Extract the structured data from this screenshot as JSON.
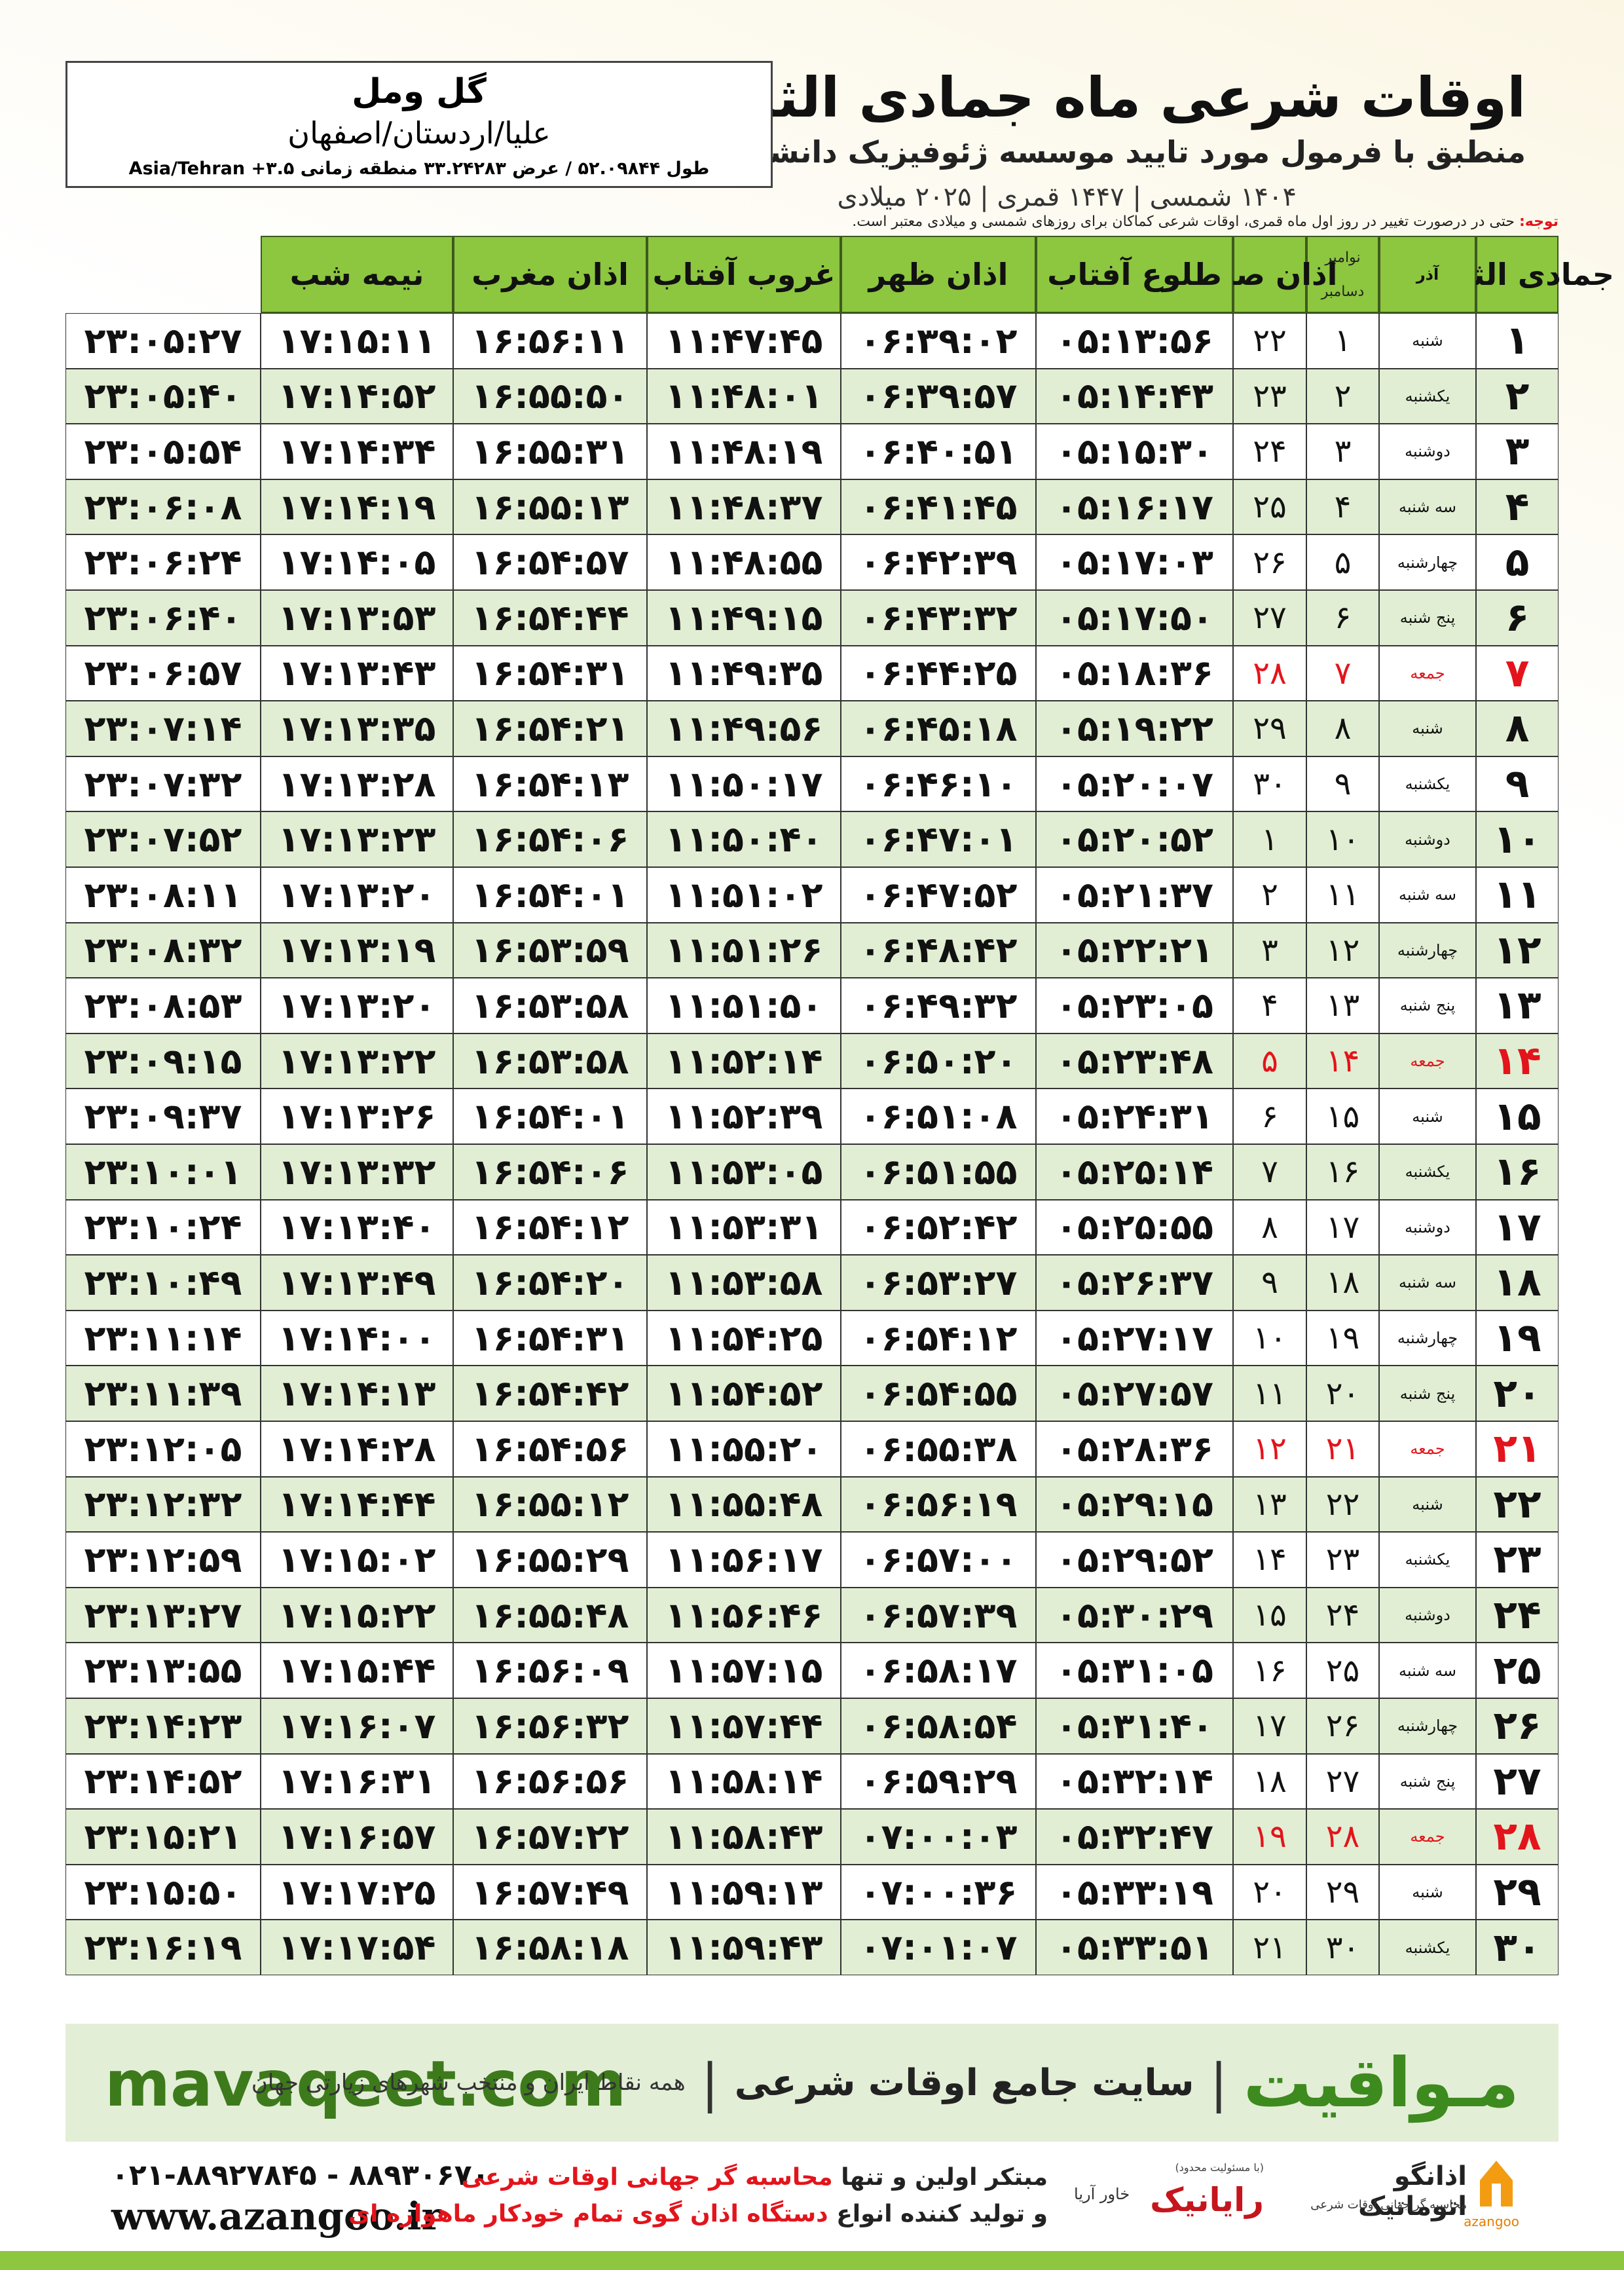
{
  "header": {
    "title": "اوقات شرعی ماه جمادی الثانی",
    "subtitle": "منطبق با فرمول مورد تایید موسسه ژئوفیزیک دانشگاه تهران",
    "dates": "۱۴۰۴ شمسی | ۱۴۴۷ قمری | ۲۰۲۵ میلادی",
    "location": {
      "name": "گل ومل",
      "region": "علیا/اردستان/اصفهان",
      "coords": "طول ۵۲.۰۹۸۴۴ / عرض ۳۳.۲۴۲۸۳ منطقه زمانی ۳.۵+ Asia/Tehran"
    },
    "note": {
      "label": "توجه:",
      "text": "حتی در درصورت تغییر در روز اول ماه قمری، اوقات شرعی کماکان برای روزهای شمسی و میلادی معتبر است."
    }
  },
  "table": {
    "columns": [
      "جمادی الثانی",
      "آذر",
      [
        "نوامبر",
        "دسامبر"
      ],
      "اذان صبح",
      "طلوع آفتاب",
      "اذان ظهر",
      "غروب آفتاب",
      "اذان مغرب",
      "نیمه شب"
    ],
    "rows": [
      {
        "cells": [
          "۱",
          "شنبه",
          "۱",
          "۲۲",
          "۰۵:۱۳:۵۶",
          "۰۶:۳۹:۰۲",
          "۱۱:۴۷:۴۵",
          "۱۶:۵۶:۱۱",
          "۱۷:۱۵:۱۱",
          "۲۳:۰۵:۲۷"
        ]
      },
      {
        "cells": [
          "۲",
          "یکشنبه",
          "۲",
          "۲۳",
          "۰۵:۱۴:۴۳",
          "۰۶:۳۹:۵۷",
          "۱۱:۴۸:۰۱",
          "۱۶:۵۵:۵۰",
          "۱۷:۱۴:۵۲",
          "۲۳:۰۵:۴۰"
        ]
      },
      {
        "cells": [
          "۳",
          "دوشنبه",
          "۳",
          "۲۴",
          "۰۵:۱۵:۳۰",
          "۰۶:۴۰:۵۱",
          "۱۱:۴۸:۱۹",
          "۱۶:۵۵:۳۱",
          "۱۷:۱۴:۳۴",
          "۲۳:۰۵:۵۴"
        ]
      },
      {
        "cells": [
          "۴",
          "سه شنبه",
          "۴",
          "۲۵",
          "۰۵:۱۶:۱۷",
          "۰۶:۴۱:۴۵",
          "۱۱:۴۸:۳۷",
          "۱۶:۵۵:۱۳",
          "۱۷:۱۴:۱۹",
          "۲۳:۰۶:۰۸"
        ]
      },
      {
        "cells": [
          "۵",
          "چهارشنبه",
          "۵",
          "۲۶",
          "۰۵:۱۷:۰۳",
          "۰۶:۴۲:۳۹",
          "۱۱:۴۸:۵۵",
          "۱۶:۵۴:۵۷",
          "۱۷:۱۴:۰۵",
          "۲۳:۰۶:۲۴"
        ]
      },
      {
        "cells": [
          "۶",
          "پنج شنبه",
          "۶",
          "۲۷",
          "۰۵:۱۷:۵۰",
          "۰۶:۴۳:۳۲",
          "۱۱:۴۹:۱۵",
          "۱۶:۵۴:۴۴",
          "۱۷:۱۳:۵۳",
          "۲۳:۰۶:۴۰"
        ]
      },
      {
        "cells": [
          "۷",
          "جمعه",
          "۷",
          "۲۸",
          "۰۵:۱۸:۳۶",
          "۰۶:۴۴:۲۵",
          "۱۱:۴۹:۳۵",
          "۱۶:۵۴:۳۱",
          "۱۷:۱۳:۴۳",
          "۲۳:۰۶:۵۷"
        ],
        "color": "#e3141b"
      },
      {
        "cells": [
          "۸",
          "شنبه",
          "۸",
          "۲۹",
          "۰۵:۱۹:۲۲",
          "۰۶:۴۵:۱۸",
          "۱۱:۴۹:۵۶",
          "۱۶:۵۴:۲۱",
          "۱۷:۱۳:۳۵",
          "۲۳:۰۷:۱۴"
        ]
      },
      {
        "cells": [
          "۹",
          "یکشنبه",
          "۹",
          "۳۰",
          "۰۵:۲۰:۰۷",
          "۰۶:۴۶:۱۰",
          "۱۱:۵۰:۱۷",
          "۱۶:۵۴:۱۳",
          "۱۷:۱۳:۲۸",
          "۲۳:۰۷:۳۲"
        ]
      },
      {
        "cells": [
          "۱۰",
          "دوشنبه",
          "۱۰",
          "۱",
          "۰۵:۲۰:۵۲",
          "۰۶:۴۷:۰۱",
          "۱۱:۵۰:۴۰",
          "۱۶:۵۴:۰۶",
          "۱۷:۱۳:۲۳",
          "۲۳:۰۷:۵۲"
        ]
      },
      {
        "cells": [
          "۱۱",
          "سه شنبه",
          "۱۱",
          "۲",
          "۰۵:۲۱:۳۷",
          "۰۶:۴۷:۵۲",
          "۱۱:۵۱:۰۲",
          "۱۶:۵۴:۰۱",
          "۱۷:۱۳:۲۰",
          "۲۳:۰۸:۱۱"
        ]
      },
      {
        "cells": [
          "۱۲",
          "چهارشنبه",
          "۱۲",
          "۳",
          "۰۵:۲۲:۲۱",
          "۰۶:۴۸:۴۲",
          "۱۱:۵۱:۲۶",
          "۱۶:۵۳:۵۹",
          "۱۷:۱۳:۱۹",
          "۲۳:۰۸:۳۲"
        ]
      },
      {
        "cells": [
          "۱۳",
          "پنج شنبه",
          "۱۳",
          "۴",
          "۰۵:۲۳:۰۵",
          "۰۶:۴۹:۳۲",
          "۱۱:۵۱:۵۰",
          "۱۶:۵۳:۵۸",
          "۱۷:۱۳:۲۰",
          "۲۳:۰۸:۵۳"
        ]
      },
      {
        "cells": [
          "۱۴",
          "جمعه",
          "۱۴",
          "۵",
          "۰۵:۲۳:۴۸",
          "۰۶:۵۰:۲۰",
          "۱۱:۵۲:۱۴",
          "۱۶:۵۳:۵۸",
          "۱۷:۱۳:۲۲",
          "۲۳:۰۹:۱۵"
        ],
        "color": "#e3141b"
      },
      {
        "cells": [
          "۱۵",
          "شنبه",
          "۱۵",
          "۶",
          "۰۵:۲۴:۳۱",
          "۰۶:۵۱:۰۸",
          "۱۱:۵۲:۳۹",
          "۱۶:۵۴:۰۱",
          "۱۷:۱۳:۲۶",
          "۲۳:۰۹:۳۷"
        ]
      },
      {
        "cells": [
          "۱۶",
          "یکشنبه",
          "۱۶",
          "۷",
          "۰۵:۲۵:۱۴",
          "۰۶:۵۱:۵۵",
          "۱۱:۵۳:۰۵",
          "۱۶:۵۴:۰۶",
          "۱۷:۱۳:۳۲",
          "۲۳:۱۰:۰۱"
        ]
      },
      {
        "cells": [
          "۱۷",
          "دوشنبه",
          "۱۷",
          "۸",
          "۰۵:۲۵:۵۵",
          "۰۶:۵۲:۴۲",
          "۱۱:۵۳:۳۱",
          "۱۶:۵۴:۱۲",
          "۱۷:۱۳:۴۰",
          "۲۳:۱۰:۲۴"
        ]
      },
      {
        "cells": [
          "۱۸",
          "سه شنبه",
          "۱۸",
          "۹",
          "۰۵:۲۶:۳۷",
          "۰۶:۵۳:۲۷",
          "۱۱:۵۳:۵۸",
          "۱۶:۵۴:۲۰",
          "۱۷:۱۳:۴۹",
          "۲۳:۱۰:۴۹"
        ]
      },
      {
        "cells": [
          "۱۹",
          "چهارشنبه",
          "۱۹",
          "۱۰",
          "۰۵:۲۷:۱۷",
          "۰۶:۵۴:۱۲",
          "۱۱:۵۴:۲۵",
          "۱۶:۵۴:۳۱",
          "۱۷:۱۴:۰۰",
          "۲۳:۱۱:۱۴"
        ]
      },
      {
        "cells": [
          "۲۰",
          "پنج شنبه",
          "۲۰",
          "۱۱",
          "۰۵:۲۷:۵۷",
          "۰۶:۵۴:۵۵",
          "۱۱:۵۴:۵۲",
          "۱۶:۵۴:۴۲",
          "۱۷:۱۴:۱۳",
          "۲۳:۱۱:۳۹"
        ]
      },
      {
        "cells": [
          "۲۱",
          "جمعه",
          "۲۱",
          "۱۲",
          "۰۵:۲۸:۳۶",
          "۰۶:۵۵:۳۸",
          "۱۱:۵۵:۲۰",
          "۱۶:۵۴:۵۶",
          "۱۷:۱۴:۲۸",
          "۲۳:۱۲:۰۵"
        ],
        "color": "#e3141b"
      },
      {
        "cells": [
          "۲۲",
          "شنبه",
          "۲۲",
          "۱۳",
          "۰۵:۲۹:۱۵",
          "۰۶:۵۶:۱۹",
          "۱۱:۵۵:۴۸",
          "۱۶:۵۵:۱۲",
          "۱۷:۱۴:۴۴",
          "۲۳:۱۲:۳۲"
        ]
      },
      {
        "cells": [
          "۲۳",
          "یکشنبه",
          "۲۳",
          "۱۴",
          "۰۵:۲۹:۵۲",
          "۰۶:۵۷:۰۰",
          "۱۱:۵۶:۱۷",
          "۱۶:۵۵:۲۹",
          "۱۷:۱۵:۰۲",
          "۲۳:۱۲:۵۹"
        ]
      },
      {
        "cells": [
          "۲۴",
          "دوشنبه",
          "۲۴",
          "۱۵",
          "۰۵:۳۰:۲۹",
          "۰۶:۵۷:۳۹",
          "۱۱:۵۶:۴۶",
          "۱۶:۵۵:۴۸",
          "۱۷:۱۵:۲۲",
          "۲۳:۱۳:۲۷"
        ]
      },
      {
        "cells": [
          "۲۵",
          "سه شنبه",
          "۲۵",
          "۱۶",
          "۰۵:۳۱:۰۵",
          "۰۶:۵۸:۱۷",
          "۱۱:۵۷:۱۵",
          "۱۶:۵۶:۰۹",
          "۱۷:۱۵:۴۴",
          "۲۳:۱۳:۵۵"
        ]
      },
      {
        "cells": [
          "۲۶",
          "چهارشنبه",
          "۲۶",
          "۱۷",
          "۰۵:۳۱:۴۰",
          "۰۶:۵۸:۵۴",
          "۱۱:۵۷:۴۴",
          "۱۶:۵۶:۳۲",
          "۱۷:۱۶:۰۷",
          "۲۳:۱۴:۲۳"
        ]
      },
      {
        "cells": [
          "۲۷",
          "پنج شنبه",
          "۲۷",
          "۱۸",
          "۰۵:۳۲:۱۴",
          "۰۶:۵۹:۲۹",
          "۱۱:۵۸:۱۴",
          "۱۶:۵۶:۵۶",
          "۱۷:۱۶:۳۱",
          "۲۳:۱۴:۵۲"
        ]
      },
      {
        "cells": [
          "۲۸",
          "جمعه",
          "۲۸",
          "۱۹",
          "۰۵:۳۲:۴۷",
          "۰۷:۰۰:۰۳",
          "۱۱:۵۸:۴۳",
          "۱۶:۵۷:۲۲",
          "۱۷:۱۶:۵۷",
          "۲۳:۱۵:۲۱"
        ],
        "color": "#e3141b"
      },
      {
        "cells": [
          "۲۹",
          "شنبه",
          "۲۹",
          "۲۰",
          "۰۵:۳۳:۱۹",
          "۰۷:۰۰:۳۶",
          "۱۱:۵۹:۱۳",
          "۱۶:۵۷:۴۹",
          "۱۷:۱۷:۲۵",
          "۲۳:۱۵:۵۰"
        ]
      },
      {
        "cells": [
          "۳۰",
          "یکشنبه",
          "۳۰",
          "۲۱",
          "۰۵:۳۳:۵۱",
          "۰۷:۰۱:۰۷",
          "۱۱:۵۹:۴۳",
          "۱۶:۵۸:۱۸",
          "۱۷:۱۷:۵۴",
          "۲۳:۱۶:۱۹"
        ]
      }
    ]
  },
  "footer": {
    "site": "mavaqeet.com",
    "brand": "مـواقیت",
    "slogan": "سایت جامع اوقات شرعی",
    "coverage": "همه نقاط ایران و منتخب شهرهای زیارتی جهان",
    "phones": "۰۲۱-۸۸۹۲۷۸۴۵ - ۸۸۹۳۰۶۷۰",
    "web": "www.azangoo.ir",
    "line1": {
      "lead": "مبتکر اولین و تنها ",
      "emphasis": "محاسبه گر جهانی اوقات شرعی"
    },
    "line2": {
      "lead": "و تولید کننده انواع ",
      "emphasis": "دستگاه اذان گوی تمام خودکار ماهواره ای"
    },
    "logos": {
      "raianik": "رایانیک",
      "khavar": "خاور آریا",
      "limited": "(با مسئولیت محدود)",
      "azangoo_fa": "اذانگو اتوماتیک",
      "azangoo_tag": "محاسبه گر جهانی اوقات شرعی",
      "azangoo_en": "azangoo"
    }
  }
}
